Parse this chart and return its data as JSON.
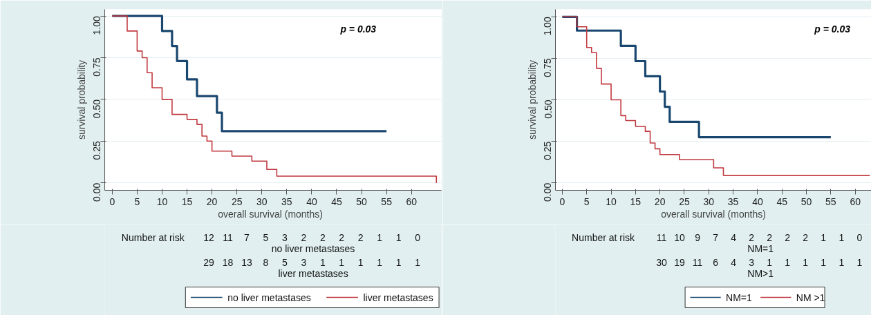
{
  "chart_data": [
    {
      "type": "step",
      "xlabel": "overall survival   (months)",
      "ylabel": "survival probability",
      "series": [
        {
          "name": "no liver metastases",
          "color": "#1a476f",
          "x": [
            0,
            10,
            12,
            13,
            15,
            17,
            21,
            22,
            55
          ],
          "values": [
            1,
            0.91,
            0.82,
            0.73,
            0.62,
            0.52,
            0.42,
            0.31,
            0.31
          ]
        },
        {
          "name": "liver metastases",
          "color": "#c0393f",
          "x": [
            0,
            3,
            5,
            6,
            7,
            8,
            10,
            12,
            15,
            17,
            18,
            19,
            20,
            24,
            28,
            31,
            33,
            65
          ],
          "values": [
            1,
            0.91,
            0.79,
            0.75,
            0.66,
            0.57,
            0.5,
            0.41,
            0.38,
            0.35,
            0.28,
            0.25,
            0.19,
            0.16,
            0.13,
            0.08,
            0.04,
            0
          ]
        }
      ],
      "xlim": [
        -1.5,
        66
      ],
      "ylim": [
        -0.045,
        1.04
      ],
      "xticks": [
        0,
        5,
        10,
        15,
        20,
        25,
        30,
        35,
        40,
        45,
        50,
        55,
        60
      ],
      "yticks": [
        {
          "value": 0,
          "label": "0.00"
        },
        {
          "value": 0.25,
          "label": "0.25"
        },
        {
          "value": 0.5,
          "label": "0.50"
        },
        {
          "value": 0.75,
          "label": "0.75"
        },
        {
          "value": 1,
          "label": "1.00"
        }
      ],
      "grid": "y",
      "legend": "bottom",
      "annotations": [
        "p = 0.03",
        "Number at risk",
        "12 11 7 5 3 2 2 2 2 1 1 0",
        "no liver metastases",
        "29 18 13 8 5 3 1 1 1 1 1 1",
        "liver metastases"
      ]
    },
    {
      "type": "step",
      "xlabel": "overall survival (months)",
      "ylabel": "survival probability",
      "series": [
        {
          "name": "NM=1",
          "color": "#1a476f",
          "x": [
            0,
            3,
            12,
            15,
            17,
            20,
            21,
            22,
            28,
            55
          ],
          "values": [
            1,
            0.917,
            0.825,
            0.733,
            0.642,
            0.55,
            0.458,
            0.367,
            0.275,
            0.275
          ]
        },
        {
          "name": "NM >1",
          "color": "#c0393f",
          "x": [
            0,
            3,
            5,
            6,
            7,
            8,
            10,
            12,
            13,
            15,
            17,
            18,
            19,
            20,
            24,
            31,
            33,
            63
          ],
          "values": [
            1,
            0.94,
            0.815,
            0.785,
            0.69,
            0.595,
            0.5,
            0.405,
            0.375,
            0.34,
            0.31,
            0.24,
            0.205,
            0.17,
            0.14,
            0.09,
            0.045,
            0.045
          ]
        }
      ],
      "xlim": [
        -1.4,
        63.3
      ],
      "ylim": [
        -0.045,
        1.045
      ],
      "xticks": [
        0,
        5,
        10,
        15,
        20,
        25,
        30,
        35,
        40,
        45,
        50,
        55,
        60
      ],
      "yticks": [
        {
          "value": 0,
          "label": "0.00"
        },
        {
          "value": 0.25,
          "label": "0.25"
        },
        {
          "value": 0.5,
          "label": "0.50"
        },
        {
          "value": 0.75,
          "label": "0.75"
        },
        {
          "value": 1,
          "label": "1.00"
        }
      ],
      "grid": "y",
      "legend": "bottom",
      "annotations": [
        "p = 0.03",
        "Number at risk",
        "11 10 9 7 4 2 2 2 2 1 1 0",
        "NM=1",
        "30 19 11 6 4 3 1 1 1 1 1 1",
        "NM>1"
      ]
    }
  ]
}
